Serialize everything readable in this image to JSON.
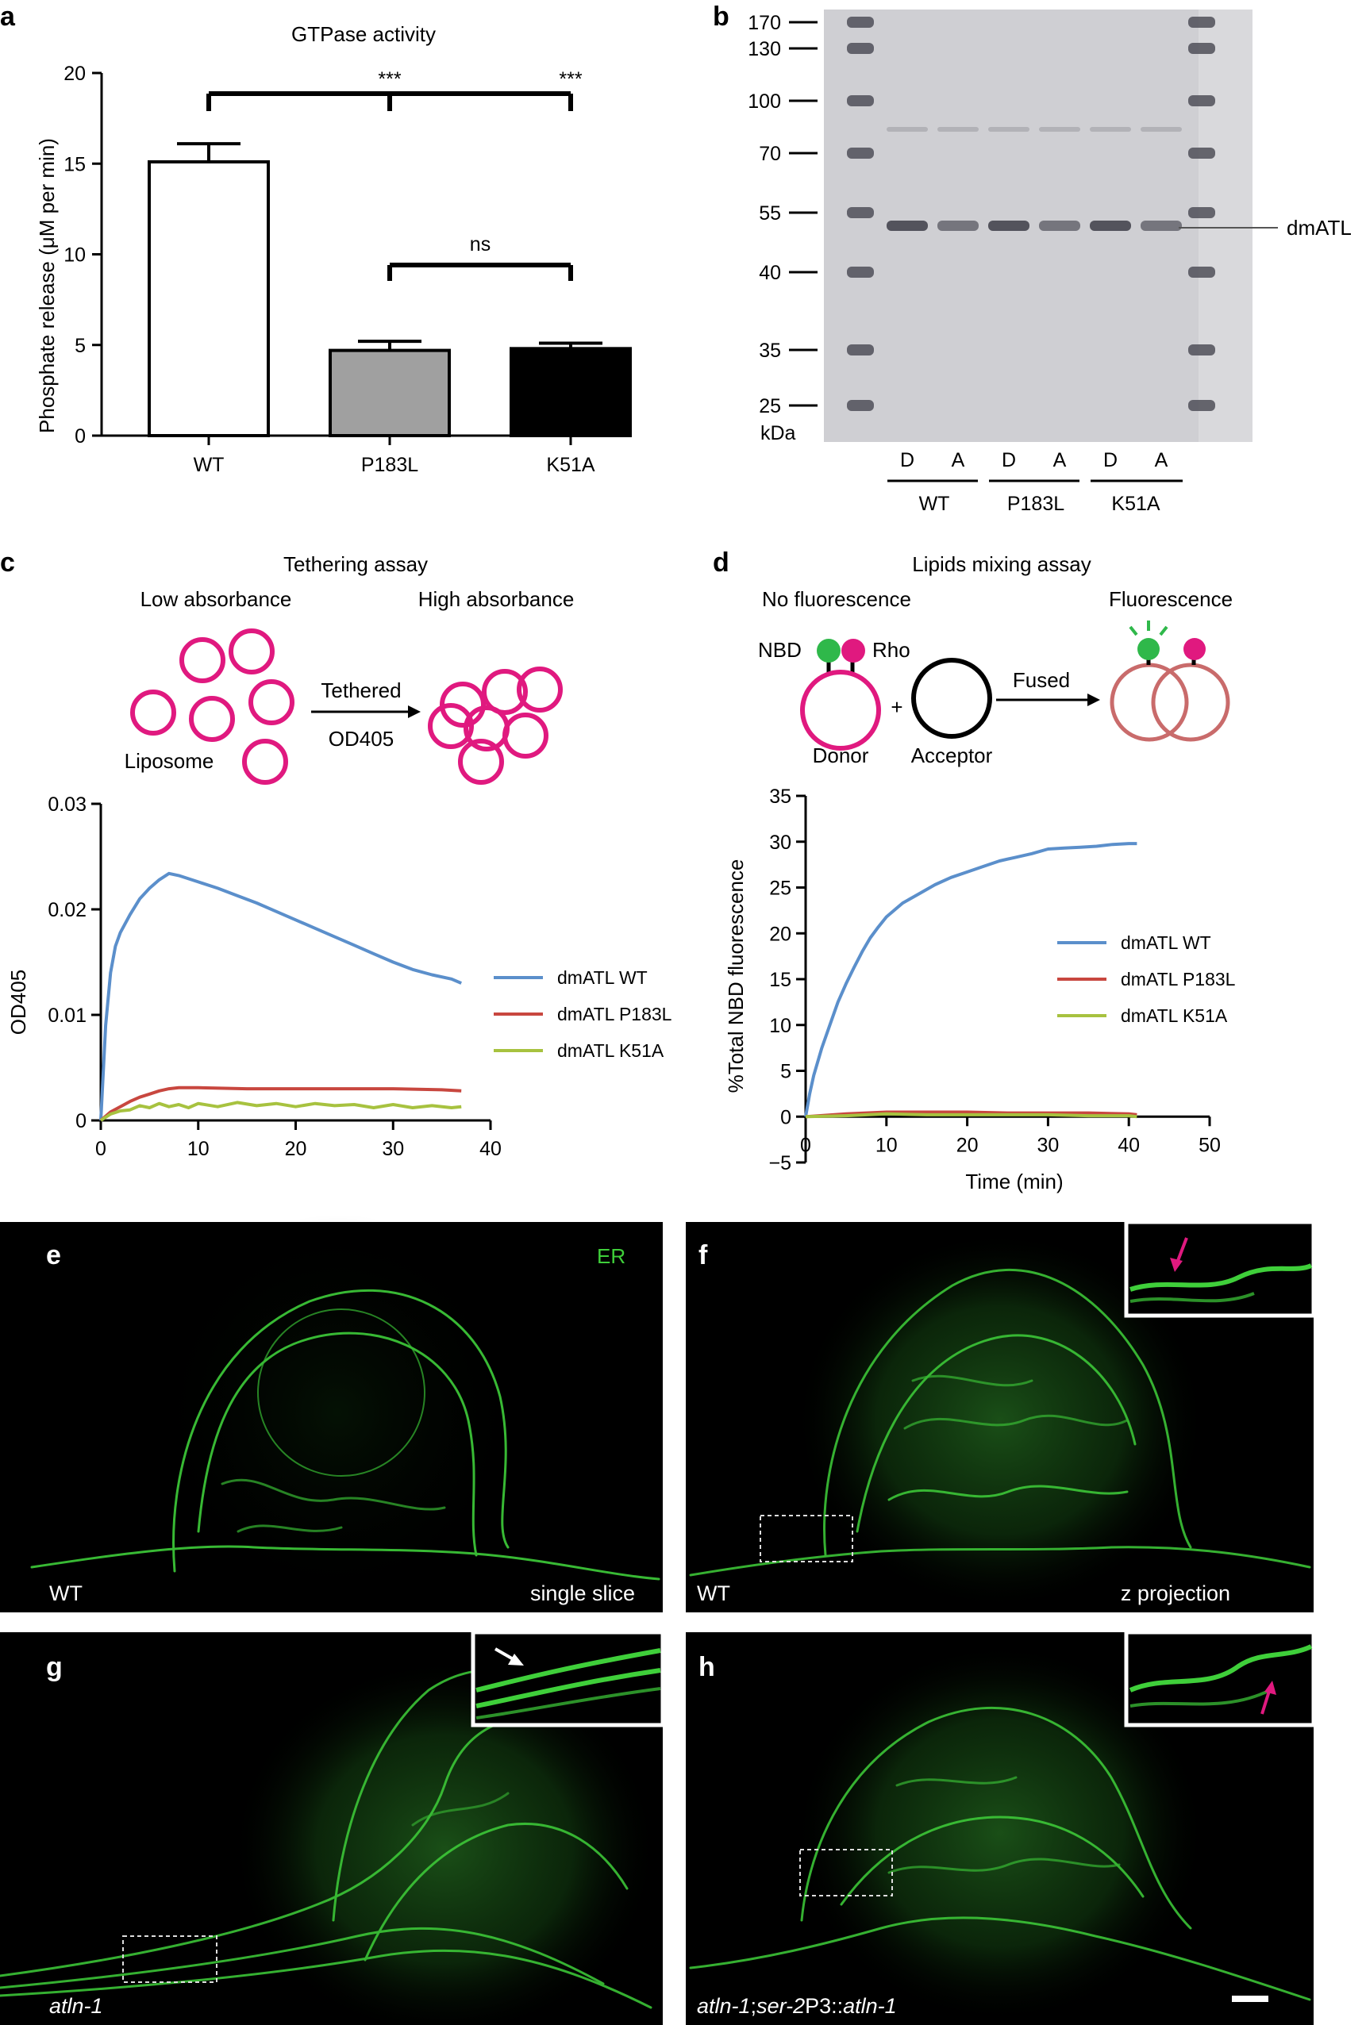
{
  "panel_letters": [
    "a",
    "b",
    "c",
    "d",
    "e",
    "f",
    "g",
    "h"
  ],
  "colors": {
    "wt_series": "#5b8fcb",
    "p183l_series": "#c8473f",
    "k51a_series": "#a7c23f",
    "liposome": "#e0197f",
    "nbd": "#2fb84a",
    "fused": "#c96b6b",
    "er_green": "#3fcf3a"
  },
  "chart_data": [
    {
      "panel": "a",
      "type": "bar",
      "title": "GTPase activity",
      "ylabel": "Phosphate release (μM per min)",
      "xlabel": "",
      "ylim": [
        0,
        20
      ],
      "yticks": [
        "0",
        "5",
        "10",
        "15",
        "20"
      ],
      "categories": [
        "WT",
        "P183L",
        "K51A"
      ],
      "values": [
        15.1,
        4.7,
        4.8
      ],
      "errors": [
        1.0,
        0.5,
        0.3
      ],
      "bar_colors": [
        "#ffffff",
        "#a0a0a0",
        "#000000"
      ],
      "significance": [
        {
          "label": "***",
          "from": 0,
          "to": 1
        },
        {
          "label": "***",
          "from": 0,
          "to": 2
        },
        {
          "label": "ns",
          "from": 1,
          "to": 2
        }
      ]
    },
    {
      "panel": "c",
      "type": "line",
      "title": "",
      "xlabel": "",
      "ylabel": "OD405",
      "xlim": [
        0,
        40
      ],
      "ylim": [
        0,
        0.03
      ],
      "xticks": [
        "0",
        "10",
        "20",
        "30",
        "40"
      ],
      "yticks": [
        "0",
        "0.01",
        "0.02",
        "0.03"
      ],
      "series": [
        {
          "name": "dmATL WT",
          "x": [
            0,
            0.5,
            1,
            1.5,
            2,
            3,
            4,
            5,
            6,
            7,
            8,
            10,
            12,
            14,
            16,
            18,
            20,
            22,
            24,
            26,
            28,
            30,
            32,
            34,
            36,
            37
          ],
          "y": [
            0,
            0.009,
            0.014,
            0.0165,
            0.0178,
            0.0195,
            0.021,
            0.022,
            0.0228,
            0.0234,
            0.0232,
            0.0226,
            0.022,
            0.0213,
            0.0206,
            0.0198,
            0.019,
            0.0182,
            0.0174,
            0.0166,
            0.0158,
            0.015,
            0.0143,
            0.0138,
            0.0134,
            0.013
          ]
        },
        {
          "name": "dmATL P183L",
          "x": [
            0,
            1,
            2,
            3,
            4,
            5,
            6,
            7,
            8,
            10,
            15,
            20,
            25,
            30,
            35,
            37
          ],
          "y": [
            0,
            0.0008,
            0.0013,
            0.0018,
            0.0022,
            0.0025,
            0.0028,
            0.003,
            0.0031,
            0.0031,
            0.003,
            0.003,
            0.003,
            0.003,
            0.0029,
            0.0028
          ]
        },
        {
          "name": "dmATL K51A",
          "x": [
            0,
            1,
            2,
            3,
            4,
            5,
            6,
            7,
            8,
            9,
            10,
            12,
            14,
            16,
            18,
            20,
            22,
            24,
            26,
            28,
            30,
            32,
            34,
            36,
            37
          ],
          "y": [
            0,
            0.0006,
            0.0009,
            0.001,
            0.0014,
            0.0012,
            0.0016,
            0.0013,
            0.0015,
            0.0012,
            0.0016,
            0.0013,
            0.0017,
            0.0014,
            0.0016,
            0.0013,
            0.0016,
            0.0014,
            0.0015,
            0.0012,
            0.0015,
            0.0012,
            0.0014,
            0.0012,
            0.0013
          ]
        }
      ],
      "legend": "right"
    },
    {
      "panel": "d",
      "type": "line",
      "title": "",
      "xlabel": "Time (min)",
      "ylabel": "%Total NBD fluorescence",
      "xlim": [
        0,
        50
      ],
      "ylim": [
        -5,
        35
      ],
      "xticks": [
        "0",
        "10",
        "20",
        "30",
        "40",
        "50"
      ],
      "yticks": [
        "−5",
        "0",
        "5",
        "10",
        "15",
        "20",
        "25",
        "30",
        "35"
      ],
      "series": [
        {
          "name": "dmATL WT",
          "x": [
            0,
            0.5,
            1,
            2,
            3,
            4,
            5,
            6,
            7,
            8,
            9,
            10,
            12,
            14,
            16,
            18,
            20,
            22,
            24,
            26,
            28,
            30,
            32,
            34,
            36,
            38,
            40,
            41
          ],
          "y": [
            0,
            2.5,
            4.5,
            7.5,
            10,
            12.5,
            14.5,
            16.3,
            18,
            19.5,
            20.7,
            21.8,
            23.3,
            24.3,
            25.3,
            26.1,
            26.7,
            27.3,
            27.9,
            28.3,
            28.7,
            29.2,
            29.3,
            29.4,
            29.5,
            29.7,
            29.8,
            29.8
          ]
        },
        {
          "name": "dmATL P183L",
          "x": [
            0,
            5,
            10,
            15,
            20,
            25,
            30,
            35,
            40,
            41
          ],
          "y": [
            0,
            0.3,
            0.5,
            0.5,
            0.5,
            0.4,
            0.4,
            0.4,
            0.3,
            0.2
          ]
        },
        {
          "name": "dmATL K51A",
          "x": [
            0,
            5,
            10,
            15,
            20,
            25,
            30,
            35,
            40,
            41
          ],
          "y": [
            0,
            0.1,
            0.3,
            0.2,
            0.2,
            0.2,
            0.2,
            0.1,
            0.1,
            0.0
          ]
        }
      ],
      "legend": "right"
    }
  ],
  "gel": {
    "markers_kda": [
      "170",
      "130",
      "100",
      "70",
      "55",
      "40",
      "35",
      "25"
    ],
    "unit": "kDa",
    "band_label": "dmATL",
    "lane_labels": [
      "D",
      "A",
      "D",
      "A",
      "D",
      "A"
    ],
    "group_labels": [
      "WT",
      "P183L",
      "K51A"
    ]
  },
  "diagram_c": {
    "title": "Tethering assay",
    "left_label": "Low absorbance",
    "right_label": "High absorbance",
    "arrow_top": "Tethered",
    "arrow_bottom": "OD405",
    "liposome_label": "Liposome"
  },
  "diagram_d": {
    "title": "Lipids mixing assay",
    "left_label": "No fluorescence",
    "right_label": "Fluorescence",
    "nbd_label": "NBD",
    "rho_label": "Rho",
    "plus": "+",
    "arrow_label": "Fused",
    "donor_label": "Donor",
    "acceptor_label": "Acceptor"
  },
  "micrographs": {
    "e": {
      "top_label": "ER",
      "bottom_left": "WT",
      "bottom_right": "single slice"
    },
    "f": {
      "bottom_left": "WT",
      "bottom_right": "z projection"
    },
    "g": {
      "bottom_left": "atln-1"
    },
    "h": {
      "bl_part1": "atln-1",
      "bl_part2": ";",
      "bl_part3": "ser-2",
      "bl_part4": "P3::",
      "bl_part5": "atln-1"
    }
  }
}
